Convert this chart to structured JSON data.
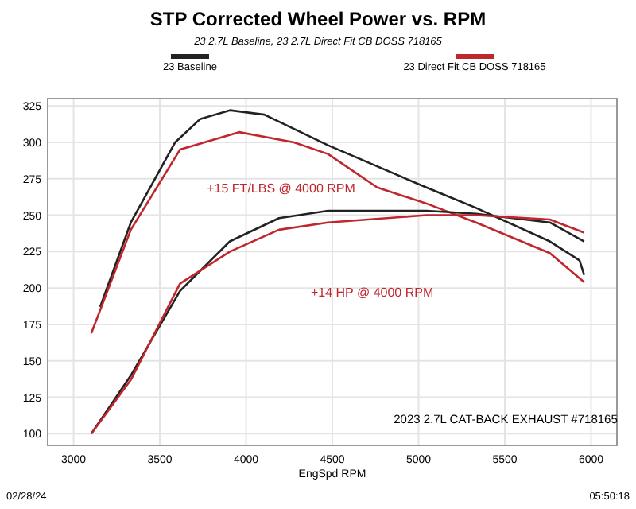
{
  "chart_data": {
    "type": "line",
    "title": "STP Corrected Wheel Power vs. RPM",
    "subtitle": "23 2.7L Baseline, 23 2.7L Direct Fit CB DOSS 718165",
    "xlabel": "EngSpd RPM",
    "xlim": [
      2850,
      6150
    ],
    "xticks": [
      3000,
      3500,
      4000,
      4500,
      5000,
      5500,
      6000
    ],
    "ylim": [
      92,
      330
    ],
    "yticks": [
      100,
      125,
      150,
      175,
      200,
      225,
      250,
      275,
      300,
      325
    ],
    "grid": true,
    "legend": "top",
    "line_style": "solid",
    "marker": "none",
    "series": [
      {
        "name": "23 Baseline",
        "color": "#222222",
        "x": [
          3154,
          3332,
          3589,
          3734,
          3906,
          4106,
          4475,
          5046,
          5333,
          5761,
          5933,
          5960
        ],
        "values": [
          187,
          245,
          300,
          316,
          322,
          319,
          298,
          269,
          255,
          232,
          219,
          209
        ]
      },
      {
        "name": "23 Direct Fit CB DOSS 718165",
        "color": "#c0272d",
        "x": [
          3103,
          3332,
          3617,
          3960,
          4278,
          4475,
          4761,
          5046,
          5333,
          5761,
          5960
        ],
        "values": [
          169,
          240,
          295,
          307,
          300,
          292,
          269,
          258,
          245,
          224,
          204
        ]
      },
      {
        "color": "#222222",
        "x": [
          3103,
          3332,
          3617,
          3906,
          4191,
          4475,
          5046,
          5333,
          5761,
          5960
        ],
        "values": [
          100,
          140,
          198,
          232,
          248,
          253,
          253,
          251,
          245,
          232
        ]
      },
      {
        "color": "#c0272d",
        "x": [
          3103,
          3332,
          3617,
          3906,
          4191,
          4475,
          5046,
          5333,
          5761,
          5960
        ],
        "values": [
          100,
          137,
          203,
          225,
          240,
          245,
          250,
          250,
          247,
          238
        ]
      }
    ],
    "annotations": [
      "+15 FT/LBS @ 4000 RPM",
      "+14 HP @ 4000 RPM",
      "2023 2.7L CAT-BACK EXHAUST #718165",
      "02/28/24",
      "05:50:18"
    ]
  }
}
